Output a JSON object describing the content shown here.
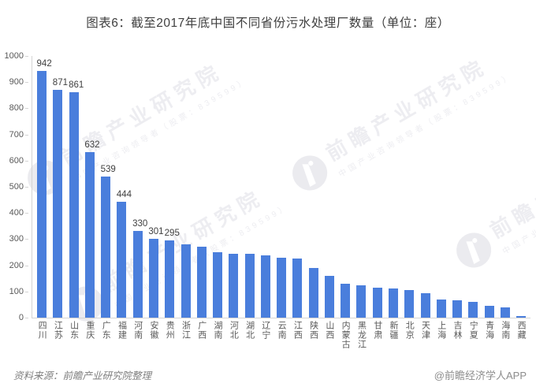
{
  "title": "图表6：截至2017年底中国不同省份污水处理厂数量（单位：座）",
  "footer": {
    "source": "资料来源：前瞻产业研究院整理",
    "brand": "@前瞻经济学人APP"
  },
  "watermark": {
    "logo_icon": "qianzhan-lighthouse-icon",
    "line1": "前瞻产业研究院",
    "line2": "中国产业咨询领导者（股票：839599）",
    "text_color": "#ededf1"
  },
  "colors": {
    "bar": "#4a7edc",
    "axis_line": "#d4d4d4",
    "tick_text": "#595959",
    "value_label": "#404040",
    "title_text": "#3f3f3f",
    "footer_text": "#7f7f7f"
  },
  "chart_data": {
    "type": "bar",
    "title": "图表6：截至2017年底中国不同省份污水处理厂数量（单位：座）",
    "unit": "座",
    "categories": [
      "四川",
      "江苏",
      "山东",
      "重庆",
      "广东",
      "福建",
      "河南",
      "安徽",
      "贵州",
      "浙江",
      "广西",
      "湖南",
      "河北",
      "湖北",
      "辽宁",
      "云南",
      "江西",
      "陕西",
      "山西",
      "内蒙古",
      "黑龙江",
      "甘肃",
      "新疆",
      "北京",
      "天津",
      "上海",
      "吉林",
      "宁夏",
      "青海",
      "海南",
      "西藏"
    ],
    "values": [
      942,
      871,
      861,
      632,
      539,
      444,
      330,
      301,
      295,
      280,
      270,
      251,
      245,
      243,
      237,
      229,
      227,
      191,
      160,
      131,
      124,
      114,
      112,
      105,
      92,
      68,
      66,
      60,
      45,
      39,
      6
    ],
    "labeled_count": 9,
    "labeled_values": [
      942,
      871,
      861,
      632,
      539,
      444,
      330,
      301,
      295
    ],
    "xlabel": "",
    "ylabel": "",
    "ylim": [
      0,
      1000
    ],
    "yticks": [
      0,
      100,
      200,
      300,
      400,
      500,
      600,
      700,
      800,
      900,
      1000
    ],
    "grid": false,
    "legend": false
  }
}
